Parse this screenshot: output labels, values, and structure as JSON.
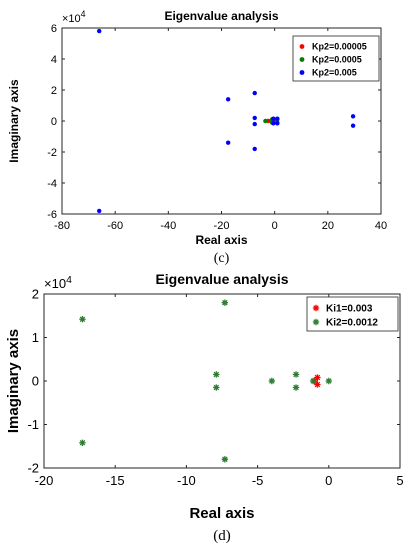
{
  "chart_data": [
    {
      "type": "scatter",
      "title": "Eigenvalue analysis",
      "xlabel": "Real axis",
      "ylabel": "Imaginary axis",
      "exponent_label": "×10",
      "exponent_power": "4",
      "xlim": [
        -80,
        40
      ],
      "ylim": [
        -6,
        6
      ],
      "xticks": [
        "-80",
        "-60",
        "-40",
        "-20",
        "0",
        "20",
        "40"
      ],
      "yticks": [
        "6",
        "4",
        "2",
        "0",
        "-2",
        "-4",
        "-6"
      ],
      "grid": false,
      "legend_position": "top-right",
      "caption": "(c)",
      "marker": "dot",
      "series": [
        {
          "name": "Kp2=0.00005",
          "color": "#ff0000",
          "points": [
            [
              -2.5,
              0
            ],
            [
              -1.5,
              0
            ],
            [
              -0.5,
              0.1
            ],
            [
              -0.5,
              -0.1
            ],
            [
              0,
              0
            ]
          ]
        },
        {
          "name": "Kp2=0.0005",
          "color": "#008000",
          "points": [
            [
              -3.5,
              0
            ],
            [
              -1,
              0.1
            ],
            [
              -1,
              -0.1
            ],
            [
              1,
              0.1
            ],
            [
              1,
              -0.1
            ]
          ]
        },
        {
          "name": "Kp2=0.005",
          "color": "#0000ff",
          "points": [
            [
              -66,
              5.8
            ],
            [
              -66,
              -5.8
            ],
            [
              -17.5,
              1.4
            ],
            [
              -17.5,
              -1.4
            ],
            [
              -7.5,
              1.8
            ],
            [
              -7.5,
              -1.8
            ],
            [
              -7.5,
              0.2
            ],
            [
              -7.5,
              -0.2
            ],
            [
              -0.5,
              0.15
            ],
            [
              -0.5,
              -0.15
            ],
            [
              1,
              0.15
            ],
            [
              1,
              -0.15
            ],
            [
              29.5,
              0.3
            ],
            [
              29.5,
              -0.3
            ]
          ]
        }
      ]
    },
    {
      "type": "scatter",
      "title": "Eigenvalue analysis",
      "xlabel": "Real axis",
      "ylabel": "Imaginary axis",
      "exponent_label": "×10",
      "exponent_power": "4",
      "xlim": [
        -20,
        5
      ],
      "ylim": [
        -2,
        2
      ],
      "xticks": [
        "-20",
        "-15",
        "-10",
        "-5",
        "0",
        "5"
      ],
      "yticks": [
        "2",
        "1",
        "0",
        "-1",
        "-2"
      ],
      "grid": false,
      "legend_position": "top-right",
      "caption": "(d)",
      "marker": "star",
      "series": [
        {
          "name": "Ki1=0.003",
          "color": "#ff0000",
          "points": [
            [
              -0.8,
              0.08
            ],
            [
              -0.8,
              -0.08
            ],
            [
              -1.0,
              0
            ]
          ]
        },
        {
          "name": "Ki2=0.0012",
          "color": "#2e7d32",
          "points": [
            [
              -17.3,
              1.42
            ],
            [
              -17.3,
              -1.42
            ],
            [
              -7.3,
              1.8
            ],
            [
              -7.3,
              -1.8
            ],
            [
              -7.9,
              0.15
            ],
            [
              -7.9,
              -0.15
            ],
            [
              -4.0,
              0
            ],
            [
              -2.3,
              0.15
            ],
            [
              -2.3,
              -0.15
            ],
            [
              -1.1,
              0
            ],
            [
              0,
              0
            ]
          ]
        }
      ]
    }
  ]
}
